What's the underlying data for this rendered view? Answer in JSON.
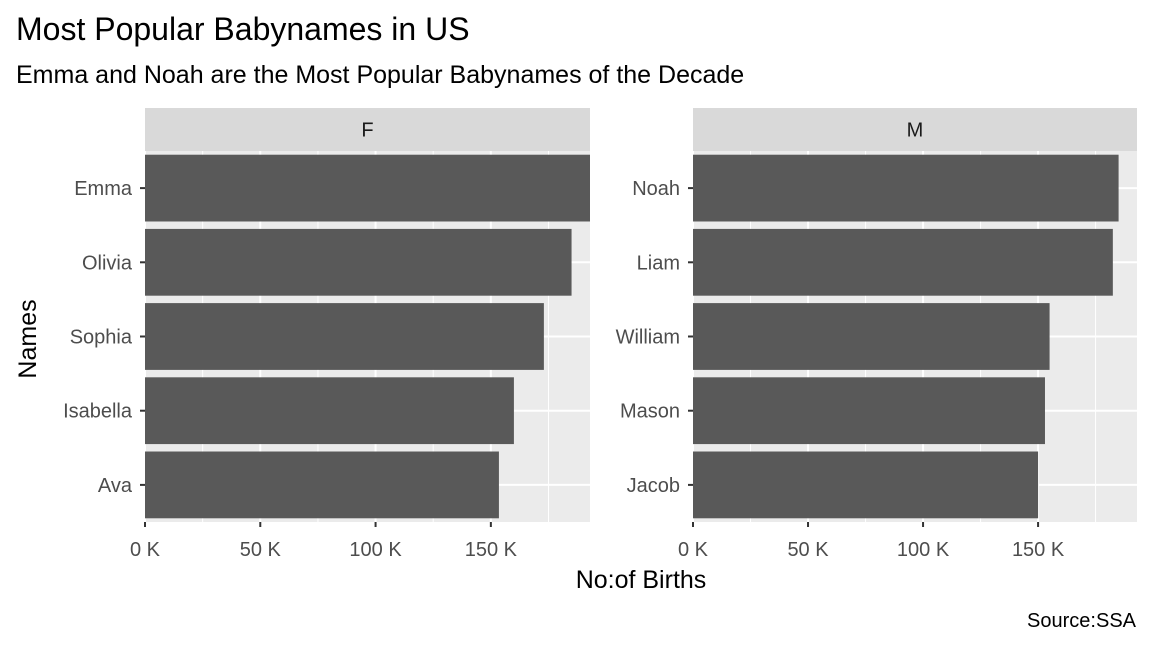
{
  "title": "Most Popular Babynames in US",
  "subtitle": "Emma and Noah are the Most Popular Babynames of the Decade",
  "caption": "Source:SSA",
  "colors": {
    "bar": "#595959",
    "panel_bg": "#ebebeb",
    "strip_bg": "#d9d9d9",
    "grid": "#ffffff"
  },
  "chart_data": {
    "type": "bar",
    "orientation": "horizontal",
    "xlabel": "No:of Births",
    "ylabel": "Names",
    "xlim": [
      0,
      193000
    ],
    "x_ticks": [
      0,
      50000,
      100000,
      150000
    ],
    "x_tick_labels": [
      "0 K",
      "50 K",
      "100 K",
      "150 K"
    ],
    "facets": [
      {
        "label": "F",
        "categories": [
          "Emma",
          "Olivia",
          "Sophia",
          "Isabella",
          "Ava"
        ],
        "values": [
          194000,
          185000,
          173000,
          160000,
          153500
        ]
      },
      {
        "label": "M",
        "categories": [
          "Noah",
          "Liam",
          "William",
          "Mason",
          "Jacob"
        ],
        "values": [
          185000,
          182500,
          155000,
          153000,
          150000
        ]
      }
    ]
  }
}
